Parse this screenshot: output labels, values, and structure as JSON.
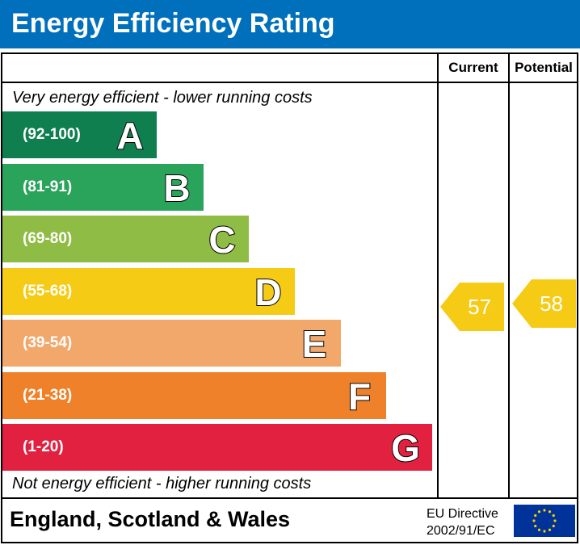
{
  "title": "Energy Efficiency Rating",
  "columns": {
    "current": "Current",
    "potential": "Potential"
  },
  "top_caption": "Very energy efficient - lower running costs",
  "bottom_caption": "Not energy efficient - higher running costs",
  "chart_data": {
    "type": "bar",
    "title": "Energy Efficiency Rating",
    "bands": [
      {
        "letter": "A",
        "range": "(92-100)",
        "color": "#107f4f"
      },
      {
        "letter": "B",
        "range": "(81-91)",
        "color": "#2aa35b"
      },
      {
        "letter": "C",
        "range": "(69-80)",
        "color": "#8fbc45"
      },
      {
        "letter": "D",
        "range": "(55-68)",
        "color": "#f6cb15"
      },
      {
        "letter": "E",
        "range": "(39-54)",
        "color": "#f2a86b"
      },
      {
        "letter": "F",
        "range": "(21-38)",
        "color": "#ee8129"
      },
      {
        "letter": "G",
        "range": "(1-20)",
        "color": "#e2203f"
      }
    ],
    "current": {
      "value": 57,
      "band": "D",
      "color": "#f6cb15"
    },
    "potential": {
      "value": 58,
      "band": "D",
      "color": "#f6cb15"
    }
  },
  "footer": {
    "region": "England, Scotland & Wales",
    "directive_line1": "EU Directive",
    "directive_line2": "2002/91/EC"
  },
  "colors": {
    "header": "#0070bc",
    "eu_flag": "#003399",
    "eu_stars": "#ffcc00"
  }
}
